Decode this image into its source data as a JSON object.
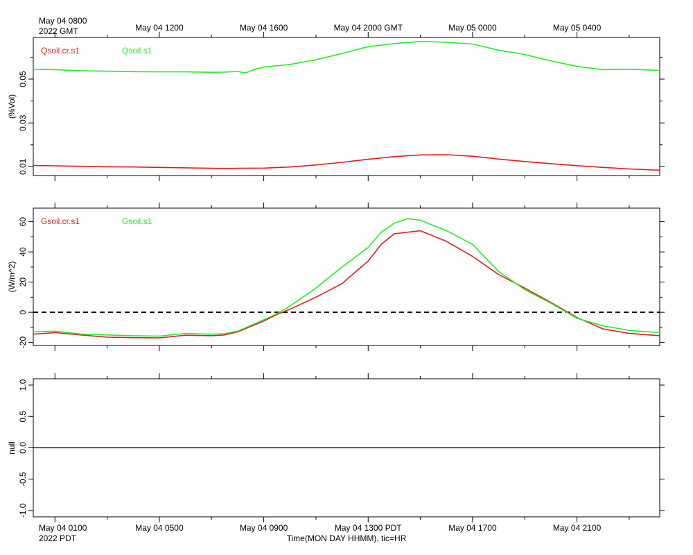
{
  "header": {
    "gmt_first_label": "May 04 0800",
    "gmt_first_year": "2022 GMT",
    "gmt_ticks": [
      "May 04 1200",
      "May 04 1600",
      "May 04 2000 GMT",
      "May 05 0000",
      "May 05 0400"
    ]
  },
  "footer": {
    "pdt_first_label": "May 04 0100",
    "pdt_first_year": "2022 PDT",
    "pdt_ticks": [
      "May 04 0500",
      "May 04 0900",
      "May 04 1300 PDT",
      "May 04 1700",
      "May 04 2100"
    ],
    "xlabel": "Time(MON DAY HHMM), tic=HR"
  },
  "colors": {
    "red": "#e41a1c",
    "green": "#22ee22"
  },
  "chart_data": [
    {
      "type": "line",
      "ylabel": "(%Vol)",
      "yticks": [
        "0.01",
        "0.03",
        "0.05"
      ],
      "ylim": [
        0.006,
        0.069
      ],
      "xlim": [
        -0.83,
        23.17
      ],
      "x_units": "hours since May 04 0000 PDT",
      "grid": false,
      "legend": "top-left",
      "series": [
        {
          "name": "Qsoil.cr.s1",
          "color": "#e41a1c",
          "x": [
            -0.83,
            0,
            1,
            2,
            3,
            4,
            5,
            6,
            6.5,
            7,
            8,
            9,
            10,
            11,
            12,
            13,
            14,
            15,
            16,
            17,
            18,
            19,
            20,
            21,
            22,
            23.17
          ],
          "values": [
            0.0106,
            0.0104,
            0.0102,
            0.01,
            0.0099,
            0.0097,
            0.0095,
            0.0093,
            0.0092,
            0.0093,
            0.0094,
            0.0099,
            0.0108,
            0.012,
            0.0134,
            0.0146,
            0.0154,
            0.0155,
            0.0148,
            0.0135,
            0.0124,
            0.0114,
            0.0105,
            0.0097,
            0.009,
            0.0084
          ]
        },
        {
          "name": "Qsoil.s1",
          "color": "#22ee22",
          "x": [
            -0.83,
            0,
            1,
            2,
            3,
            4,
            5,
            6,
            6.5,
            7,
            7.3,
            7.6,
            8,
            9,
            10,
            11,
            12,
            13,
            14,
            15,
            16,
            17,
            18,
            19,
            20,
            21,
            22,
            23.17
          ],
          "values": [
            0.0545,
            0.0543,
            0.0538,
            0.0536,
            0.0534,
            0.0533,
            0.0533,
            0.0531,
            0.0532,
            0.0535,
            0.0528,
            0.0542,
            0.0555,
            0.0567,
            0.0588,
            0.0617,
            0.0648,
            0.0662,
            0.0672,
            0.0668,
            0.066,
            0.0632,
            0.0612,
            0.0583,
            0.0558,
            0.0543,
            0.0545,
            0.054
          ]
        }
      ]
    },
    {
      "type": "line",
      "ylabel": "(W/m^2)",
      "yticks": [
        "-20",
        "0",
        "20",
        "40",
        "60"
      ],
      "ylim": [
        -22,
        69
      ],
      "xlim": [
        -0.83,
        23.17
      ],
      "x_units": "hours since May 04 0000 PDT",
      "grid": false,
      "legend": "top-left",
      "reference_line": {
        "y": 0,
        "style": "dashed"
      },
      "series": [
        {
          "name": "Gsoil.cr.s1",
          "color": "#e41a1c",
          "x": [
            -0.83,
            0,
            1,
            2,
            3,
            4,
            5,
            6,
            6.5,
            7,
            8,
            8.5,
            9,
            10,
            11,
            12,
            12.5,
            13,
            14,
            15,
            16,
            17,
            18,
            19,
            20,
            21,
            22,
            23.17
          ],
          "values": [
            -14.5,
            -13.5,
            -15,
            -16.5,
            -16.8,
            -17,
            -15.2,
            -15.5,
            -15,
            -13,
            -5.8,
            -1.5,
            2,
            10,
            19,
            34,
            45,
            52,
            54,
            47,
            37,
            25,
            16,
            6.5,
            -3.5,
            -11,
            -14,
            -15.5
          ]
        },
        {
          "name": "Gsoil.s1",
          "color": "#22ee22",
          "x": [
            -0.83,
            0,
            1,
            2,
            3,
            4,
            5,
            6,
            6.5,
            7,
            8,
            8.5,
            9,
            10,
            11,
            12,
            12.5,
            13,
            13.5,
            14,
            15,
            16,
            17,
            18,
            19,
            20,
            21,
            22,
            23.17
          ],
          "values": [
            -13,
            -12.5,
            -14.5,
            -15,
            -15.5,
            -15.8,
            -14,
            -14.5,
            -14.2,
            -12.5,
            -5,
            -1,
            4,
            16,
            30,
            43,
            53,
            59,
            62,
            61,
            54,
            45,
            27,
            15,
            6,
            -4,
            -9,
            -12,
            -13.5
          ]
        }
      ]
    },
    {
      "type": "line",
      "ylabel": "null",
      "yticks": [
        "-1.0",
        "-0.5",
        "0.0",
        "0.5",
        "1.0"
      ],
      "ylim": [
        -1.1,
        1.1
      ],
      "xlim": [
        -0.83,
        23.17
      ],
      "x_units": "hours since May 04 0000 PDT",
      "grid": false,
      "reference_line": {
        "y": 0,
        "style": "solid"
      },
      "series": []
    }
  ]
}
